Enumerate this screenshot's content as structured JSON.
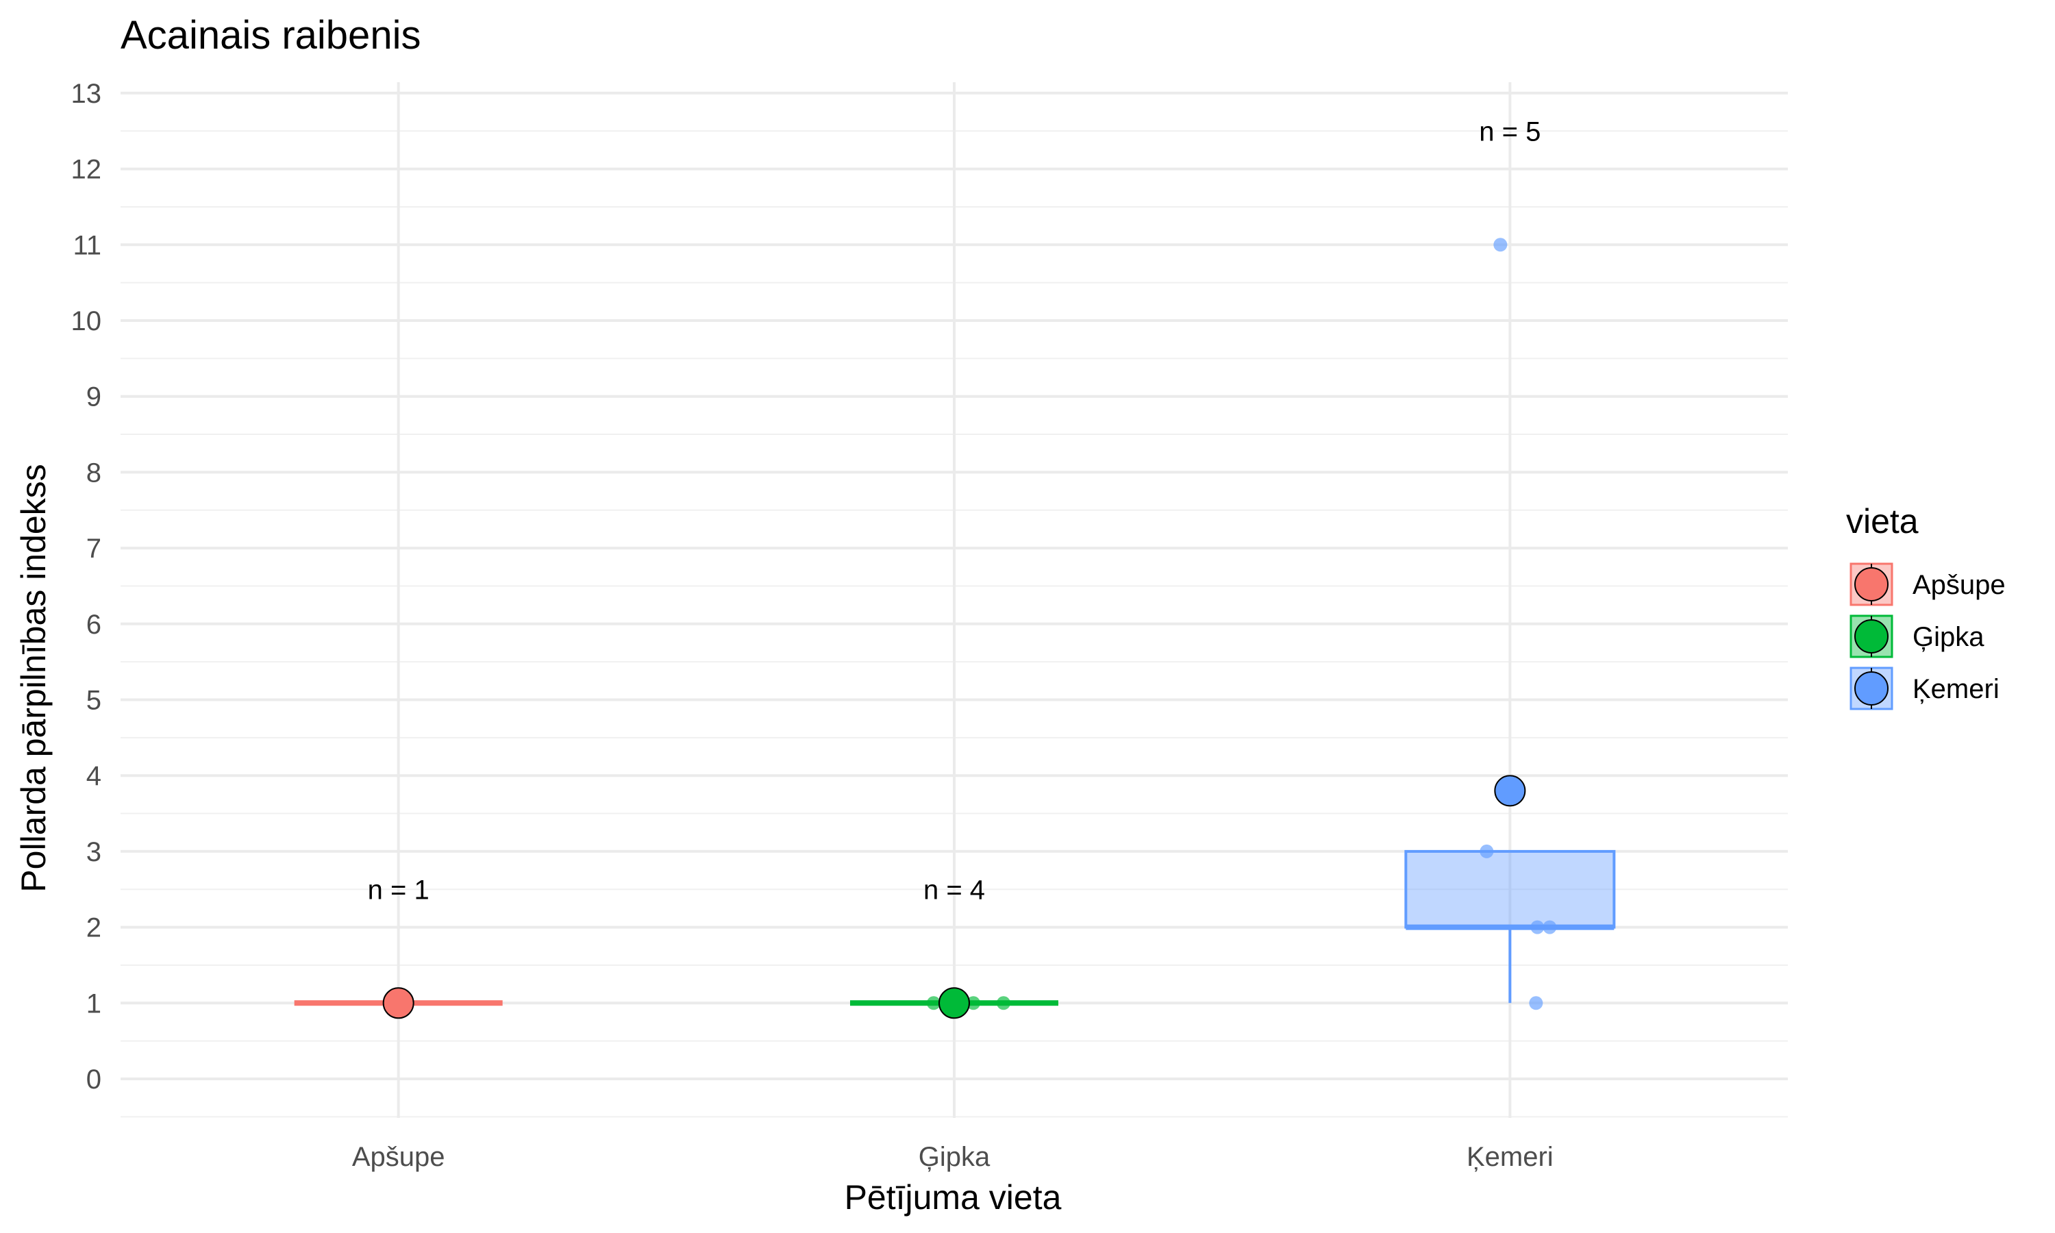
{
  "chart_data": {
    "type": "box",
    "title": "Acainais raibenis",
    "xlabel": "Pētījuma vieta",
    "ylabel": "Pollarda pārpilnības indekss",
    "ylim": [
      -0.5,
      13
    ],
    "yticks": [
      0,
      1,
      2,
      3,
      4,
      5,
      6,
      7,
      8,
      9,
      10,
      11,
      12,
      13
    ],
    "grid": true,
    "legend": {
      "title": "vieta",
      "placement": "right"
    },
    "categories": [
      "Apšupe",
      "Ģipka",
      "Ķemeri"
    ],
    "series": [
      {
        "name": "Apšupe",
        "color": "#F8766D",
        "box": {
          "min": 1,
          "q1": 1,
          "median": 1,
          "q3": 1,
          "max": 1
        },
        "points": [
          1
        ],
        "mean": 1,
        "n_label": "n = 1",
        "n_label_y": 2.5
      },
      {
        "name": "Ģipka",
        "color": "#00BA38",
        "box": {
          "min": 1,
          "q1": 1,
          "median": 1,
          "q3": 1,
          "max": 1
        },
        "points": [
          1,
          1,
          1,
          1
        ],
        "mean": 1,
        "n_label": "n = 4",
        "n_label_y": 2.5
      },
      {
        "name": "Ķemeri",
        "color": "#619CFF",
        "box": {
          "min": 1,
          "q1": 2,
          "median": 2,
          "q3": 3,
          "max": 3
        },
        "points": [
          11,
          3,
          2,
          2,
          1
        ],
        "mean": 3.8,
        "n_label": "n = 5",
        "n_label_y": 12.5
      }
    ]
  }
}
